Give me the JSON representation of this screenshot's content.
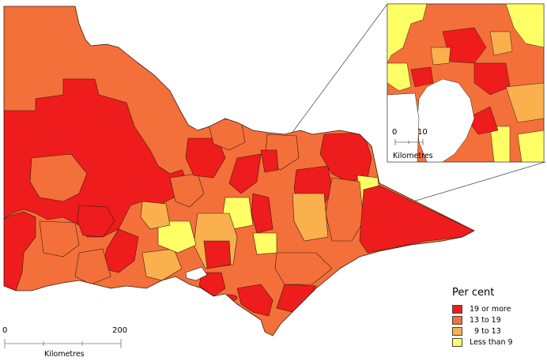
{
  "legend": {
    "title": "Per cent",
    "items": [
      {
        "label": "19 or more",
        "color": "#ee1c1c"
      },
      {
        "label": "13 to 19",
        "color": "#f4703a"
      },
      {
        "label": "  9 to 13",
        "color": "#f9b04d"
      },
      {
        "label": "Less than 9",
        "color": "#ffff66"
      }
    ]
  },
  "main_scale": {
    "start": "0",
    "end": "200",
    "unit": "Kilometres"
  },
  "inset_scale": {
    "start": "0",
    "end": "10",
    "unit": "Kilometres"
  },
  "colors": {
    "high": "#ee1c1c",
    "mid_high": "#f4703a",
    "mid_low": "#f9b04d",
    "low": "#ffff66",
    "water": "#ffffff",
    "border": "#3a1a10"
  }
}
